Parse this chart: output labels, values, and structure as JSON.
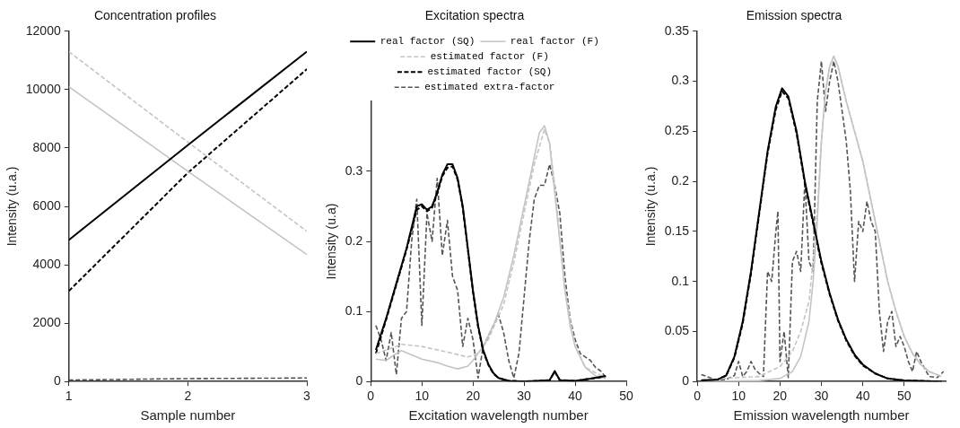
{
  "chart_data": [
    {
      "type": "line",
      "title": "Concentration profiles",
      "xlabel": "Sample number",
      "ylabel": "Intensity (u.a.)",
      "x": [
        1,
        2,
        3
      ],
      "xlim": [
        1,
        3
      ],
      "xticks": [
        1,
        2,
        3
      ],
      "ylim": [
        0,
        12000
      ],
      "yticks": [
        0,
        2000,
        4000,
        6000,
        8000,
        10000,
        12000
      ],
      "marker": "none",
      "series": [
        {
          "color": "#000000",
          "line_style": "solid",
          "values": [
            4850,
            8100,
            11300
          ]
        },
        {
          "color": "#c4c4c4",
          "line_style": "solid",
          "values": [
            10100,
            7200,
            4350
          ]
        },
        {
          "color": "#c4c4c4",
          "line_style": "dashed",
          "values": [
            11300,
            8200,
            5150
          ]
        },
        {
          "color": "#000000",
          "line_style": "dashed",
          "values": [
            3100,
            7150,
            10700
          ]
        },
        {
          "color": "#555555",
          "line_style": "dashed",
          "values": [
            50,
            100,
            120
          ]
        }
      ]
    },
    {
      "type": "line",
      "title": "Excitation spectra",
      "xlabel": "Excitation wavelength number",
      "ylabel": "Intensity (u.a)",
      "xlim": [
        0,
        50
      ],
      "xticks": [
        0,
        10,
        20,
        30,
        40,
        50
      ],
      "ylim": [
        0,
        0.4
      ],
      "yticks": [
        0,
        0.1,
        0.2,
        0.3
      ],
      "marker": "none",
      "legend": "top",
      "series": [
        {
          "name": "real factor (SQ)",
          "color": "#000000",
          "line_style": "solid",
          "x": [
            1,
            3,
            5,
            7,
            9,
            10,
            11,
            12,
            13,
            14,
            15,
            16,
            17,
            18,
            19,
            20,
            21,
            22,
            23,
            24,
            25,
            27,
            30,
            35,
            36,
            37,
            40,
            43,
            46
          ],
          "values": [
            0.045,
            0.09,
            0.14,
            0.19,
            0.25,
            0.253,
            0.245,
            0.25,
            0.27,
            0.295,
            0.31,
            0.31,
            0.29,
            0.25,
            0.19,
            0.13,
            0.08,
            0.045,
            0.025,
            0.012,
            0.005,
            0.001,
            0,
            0.002,
            0.015,
            0.002,
            0.001,
            0.004,
            0.008
          ]
        },
        {
          "name": "real factor (F)",
          "color": "#c4c4c4",
          "line_style": "solid",
          "x": [
            1,
            3,
            5,
            6,
            8,
            10,
            13,
            15,
            17,
            19,
            20,
            22,
            24,
            26,
            28,
            30,
            32,
            33,
            34,
            35,
            36,
            37,
            38,
            39,
            40,
            42,
            44,
            46
          ],
          "values": [
            0.032,
            0.03,
            0.04,
            0.044,
            0.038,
            0.032,
            0.027,
            0.022,
            0.018,
            0.022,
            0.03,
            0.05,
            0.08,
            0.12,
            0.18,
            0.25,
            0.32,
            0.355,
            0.365,
            0.34,
            0.27,
            0.2,
            0.13,
            0.08,
            0.05,
            0.02,
            0.008,
            0.004
          ]
        },
        {
          "name": "estimated factor (F)",
          "color": "#c4c4c4",
          "line_style": "dashed",
          "x": [
            1,
            3,
            5,
            6,
            10,
            15,
            19,
            21,
            23,
            26,
            28,
            30,
            32,
            34,
            35,
            36,
            38,
            40,
            42,
            46
          ],
          "values": [
            0.04,
            0.045,
            0.05,
            0.053,
            0.05,
            0.042,
            0.035,
            0.04,
            0.06,
            0.11,
            0.17,
            0.24,
            0.31,
            0.36,
            0.34,
            0.28,
            0.13,
            0.05,
            0.02,
            0.005
          ]
        },
        {
          "name": "estimated factor (SQ)",
          "color": "#000000",
          "line_style": "dashed",
          "x": [
            1,
            3,
            5,
            7,
            9,
            10,
            11,
            12,
            13,
            14,
            15,
            16,
            17,
            18,
            19,
            20,
            21,
            22,
            23,
            24,
            25,
            27,
            30,
            35,
            36,
            37,
            40,
            43,
            46
          ],
          "values": [
            0.04,
            0.088,
            0.138,
            0.188,
            0.245,
            0.25,
            0.243,
            0.248,
            0.268,
            0.293,
            0.305,
            0.307,
            0.288,
            0.248,
            0.188,
            0.128,
            0.078,
            0.043,
            0.024,
            0.011,
            0.005,
            0.001,
            0,
            0.002,
            0.014,
            0.002,
            0.001,
            0.004,
            0.007
          ]
        },
        {
          "name": "estimated extra-factor",
          "color": "#555555",
          "line_style": "dashed",
          "x": [
            1,
            2,
            3,
            4,
            5,
            6,
            7,
            8,
            9,
            10,
            11,
            12,
            13,
            14,
            15,
            16,
            17,
            18,
            19,
            20,
            21,
            22,
            24,
            25,
            26,
            27,
            28,
            29,
            30,
            31,
            32,
            33,
            34,
            35,
            36,
            37,
            38,
            39,
            40,
            41,
            42,
            43,
            44,
            45,
            46
          ],
          "values": [
            0.08,
            0.06,
            0.03,
            0.07,
            0.01,
            0.09,
            0.1,
            0.2,
            0.26,
            0.08,
            0.24,
            0.2,
            0.29,
            0.18,
            0.23,
            0.15,
            0.13,
            0.05,
            0.09,
            0.06,
            0.005,
            0.05,
            0.08,
            0.095,
            0.07,
            0.03,
            0.005,
            0.04,
            0.12,
            0.2,
            0.26,
            0.28,
            0.28,
            0.31,
            0.28,
            0.24,
            0.15,
            0.09,
            0.06,
            0.04,
            0.035,
            0.03,
            0.02,
            0.015,
            0.006
          ]
        }
      ]
    },
    {
      "type": "line",
      "title": "Emission spectra",
      "xlabel": "Emission wavelength number",
      "ylabel": "Intensity (u.a.)",
      "xlim": [
        0,
        60
      ],
      "xticks": [
        0,
        10,
        20,
        30,
        40,
        50
      ],
      "ylim": [
        0,
        0.35
      ],
      "yticks": [
        0,
        0.05,
        0.1,
        0.15,
        0.2,
        0.25,
        0.3,
        0.35
      ],
      "marker": "none",
      "series": [
        {
          "color": "#000000",
          "line_style": "solid",
          "x": [
            1,
            5,
            7,
            9,
            11,
            13,
            15,
            17,
            19,
            20.5,
            22,
            24,
            26,
            28,
            30,
            32,
            34,
            36,
            38,
            40,
            43,
            46,
            50,
            59
          ],
          "values": [
            0.001,
            0.002,
            0.006,
            0.025,
            0.06,
            0.11,
            0.17,
            0.23,
            0.275,
            0.293,
            0.285,
            0.25,
            0.2,
            0.16,
            0.12,
            0.088,
            0.062,
            0.042,
            0.027,
            0.017,
            0.008,
            0.003,
            0.001,
            0
          ]
        },
        {
          "color": "#c4c4c4",
          "line_style": "solid",
          "x": [
            1,
            15,
            20,
            23,
            25,
            27,
            28,
            29,
            30,
            31,
            32,
            33,
            34,
            36,
            38,
            40,
            42,
            44,
            46,
            48,
            50,
            52,
            54,
            56,
            59
          ],
          "values": [
            0,
            0.001,
            0.003,
            0.01,
            0.025,
            0.06,
            0.1,
            0.16,
            0.24,
            0.29,
            0.315,
            0.325,
            0.315,
            0.28,
            0.25,
            0.22,
            0.18,
            0.14,
            0.1,
            0.07,
            0.045,
            0.028,
            0.017,
            0.01,
            0.005
          ]
        },
        {
          "color": "#c4c4c4",
          "line_style": "dashed",
          "x": [
            1,
            15,
            20,
            23,
            25,
            27,
            28,
            29,
            30,
            31,
            32,
            33,
            34,
            36,
            38,
            40,
            42,
            44,
            46,
            48,
            50,
            52,
            54,
            56,
            59
          ],
          "values": [
            0.002,
            0.005,
            0.015,
            0.03,
            0.05,
            0.08,
            0.12,
            0.17,
            0.24,
            0.29,
            0.315,
            0.325,
            0.315,
            0.28,
            0.25,
            0.22,
            0.18,
            0.14,
            0.1,
            0.07,
            0.045,
            0.028,
            0.017,
            0.01,
            0.005
          ]
        },
        {
          "color": "#000000",
          "line_style": "dashed",
          "x": [
            1,
            5,
            7,
            9,
            11,
            13,
            15,
            17,
            19,
            20.5,
            22,
            24,
            26,
            28,
            30,
            32,
            34,
            36,
            38,
            40,
            43,
            46,
            50,
            59
          ],
          "values": [
            0.001,
            0.002,
            0.006,
            0.024,
            0.058,
            0.108,
            0.168,
            0.228,
            0.272,
            0.29,
            0.283,
            0.248,
            0.198,
            0.158,
            0.118,
            0.087,
            0.061,
            0.041,
            0.026,
            0.016,
            0.008,
            0.003,
            0.001,
            0
          ]
        },
        {
          "color": "#555555",
          "line_style": "dashed",
          "x": [
            1,
            3,
            5,
            7,
            9,
            10,
            11,
            12,
            13,
            14,
            15,
            16,
            17,
            18,
            19,
            19.5,
            20,
            21,
            22,
            23,
            24,
            25,
            26,
            27,
            28,
            29,
            30,
            31,
            32,
            33,
            34,
            35,
            36,
            37,
            38,
            39,
            40,
            41,
            42,
            43,
            44,
            45,
            46,
            47,
            48,
            49,
            50,
            51,
            52,
            53,
            54,
            56,
            58,
            59.5
          ],
          "values": [
            0.007,
            0.004,
            0.001,
            0.002,
            0.006,
            0.02,
            0.005,
            0.01,
            0.02,
            0.012,
            0.008,
            0.005,
            0.11,
            0.1,
            0.15,
            0.17,
            0.02,
            0.05,
            0.004,
            0.12,
            0.13,
            0.11,
            0.2,
            0.12,
            0.11,
            0.28,
            0.32,
            0.27,
            0.3,
            0.32,
            0.3,
            0.27,
            0.24,
            0.19,
            0.1,
            0.16,
            0.15,
            0.18,
            0.16,
            0.15,
            0.07,
            0.03,
            0.06,
            0.07,
            0.035,
            0.045,
            0.035,
            0.02,
            0.01,
            0.03,
            0.02,
            0.005,
            0.004,
            0.01
          ]
        }
      ]
    }
  ]
}
